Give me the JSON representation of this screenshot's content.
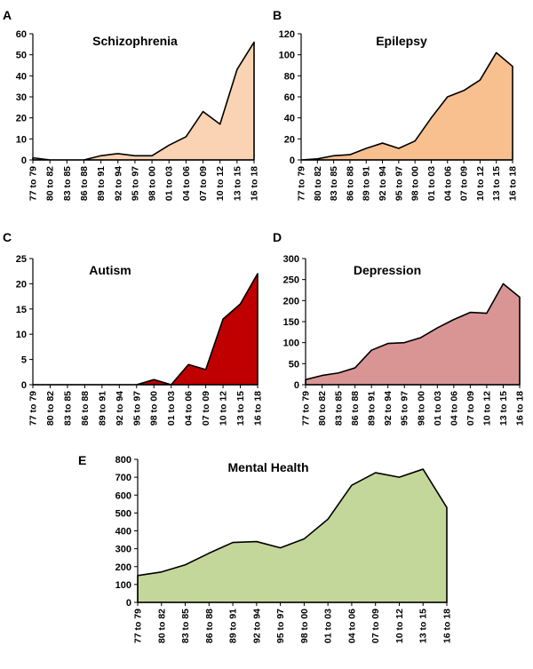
{
  "chart_data": [
    {
      "panel": "A",
      "type": "area",
      "title": "Schizophrenia",
      "xlabel": "",
      "ylabel": "",
      "categories": [
        "77 to 79",
        "80 to 82",
        "83 to 85",
        "86 to 88",
        "89 to 91",
        "92 to 94",
        "95 to 97",
        "98 to 00",
        "01 to 03",
        "04 to 06",
        "07 to 09",
        "10 to 12",
        "13 to 15",
        "16 to 18"
      ],
      "values": [
        1,
        0,
        0,
        0,
        2,
        3,
        2,
        2,
        7,
        11,
        23,
        17,
        43,
        56
      ],
      "ylim": [
        0,
        60
      ],
      "yticks": [
        0,
        10,
        20,
        30,
        40,
        50,
        60
      ],
      "fill": "#f9d3b3",
      "grid": false,
      "legend": "none"
    },
    {
      "panel": "B",
      "type": "area",
      "title": "Epilepsy",
      "xlabel": "",
      "ylabel": "",
      "categories": [
        "77 to 79",
        "80 to 82",
        "83 to 85",
        "86 to 88",
        "89 to 91",
        "92 to 94",
        "95 to 97",
        "98 to 00",
        "01 to 03",
        "04 to 06",
        "07 to 09",
        "10 to 12",
        "13 to 15",
        "16 to 18"
      ],
      "values": [
        0,
        1,
        4,
        5,
        11,
        16,
        11,
        18,
        40,
        60,
        66,
        76,
        102,
        89
      ],
      "ylim": [
        0,
        120
      ],
      "yticks": [
        0,
        20,
        40,
        60,
        80,
        100,
        120
      ],
      "fill": "#f8bf8f",
      "grid": false,
      "legend": "none"
    },
    {
      "panel": "C",
      "type": "area",
      "title": "Autism",
      "xlabel": "",
      "ylabel": "",
      "categories": [
        "77 to 79",
        "80 to 82",
        "83 to 85",
        "86 to 88",
        "89 to 91",
        "92 to 94",
        "95 to 97",
        "98 to 00",
        "01 to 03",
        "04 to 06",
        "07 to 09",
        "10 to 12",
        "13 to 15",
        "16 to 18"
      ],
      "values": [
        0,
        0,
        0,
        0,
        0,
        0,
        0,
        1,
        0,
        4,
        3,
        13,
        16,
        22
      ],
      "ylim": [
        0,
        25
      ],
      "yticks": [
        0,
        5,
        10,
        15,
        20,
        25
      ],
      "fill": "#c00000",
      "grid": false,
      "legend": "none"
    },
    {
      "panel": "D",
      "type": "area",
      "title": "Depression",
      "xlabel": "",
      "ylabel": "",
      "categories": [
        "77 to 79",
        "80 to 82",
        "83 to 85",
        "86 to 88",
        "89 to 91",
        "92 to 94",
        "95 to 97",
        "98 to 00",
        "01 to 03",
        "04 to 06",
        "07 to 09",
        "10 to 12",
        "13 to 15",
        "16 to 18"
      ],
      "values": [
        12,
        22,
        28,
        40,
        82,
        98,
        100,
        112,
        135,
        155,
        172,
        170,
        240,
        208
      ],
      "ylim": [
        0,
        300
      ],
      "yticks": [
        0,
        50,
        100,
        150,
        200,
        250,
        300
      ],
      "fill": "#d99594",
      "grid": false,
      "legend": "none"
    },
    {
      "panel": "E",
      "type": "area",
      "title": "Mental Health",
      "xlabel": "",
      "ylabel": "",
      "categories": [
        "77 to 79",
        "80 to 82",
        "83 to 85",
        "86 to 88",
        "89 to 91",
        "92 to 94",
        "95 to 97",
        "98 to 00",
        "01 to 03",
        "04 to 06",
        "07 to 09",
        "10 to 12",
        "13 to 15",
        "16 to 18"
      ],
      "values": [
        150,
        170,
        210,
        275,
        335,
        340,
        305,
        355,
        465,
        655,
        725,
        700,
        745,
        530
      ],
      "ylim": [
        0,
        800
      ],
      "yticks": [
        0,
        100,
        200,
        300,
        400,
        500,
        600,
        700,
        800
      ],
      "fill": "#c4d79b",
      "grid": false,
      "legend": "none"
    }
  ]
}
